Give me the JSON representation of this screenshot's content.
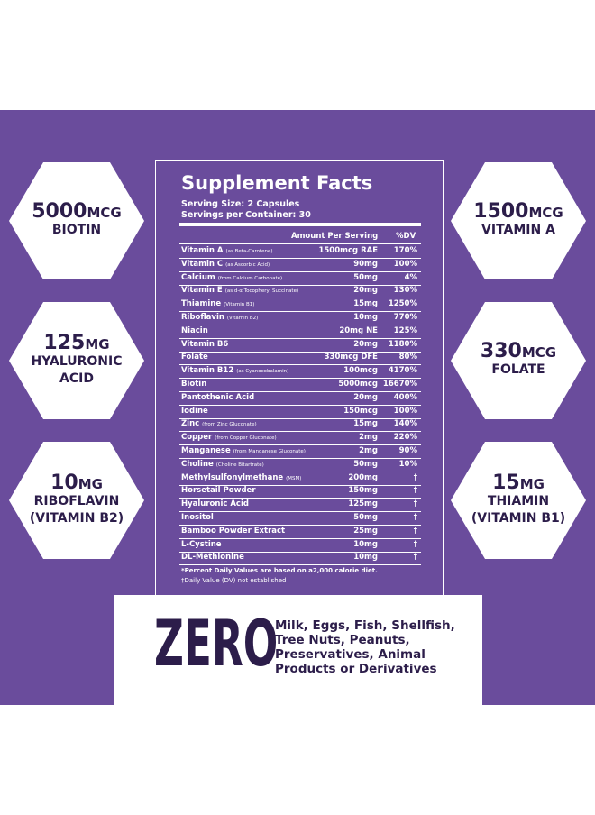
{
  "badges": [
    {
      "amount": "5000",
      "unit": "MCG",
      "label": [
        "BIOTIN"
      ]
    },
    {
      "amount": "125",
      "unit": "MG",
      "label": [
        "HYALURONIC",
        "ACID"
      ]
    },
    {
      "amount": "10",
      "unit": "MG",
      "label": [
        "RIBOFLAVIN",
        "(VITAMIN B2)"
      ]
    },
    {
      "amount": "1500",
      "unit": "MCG",
      "label": [
        "VITAMIN A"
      ]
    },
    {
      "amount": "330",
      "unit": "MCG",
      "label": [
        "FOLATE"
      ]
    },
    {
      "amount": "15",
      "unit": "MG",
      "label": [
        "THIAMIN",
        "(VITAMIN B1)"
      ]
    }
  ],
  "facts": {
    "title": "Supplement Facts",
    "serving_size": "Serving Size: 2 Capsules",
    "servings": "Servings per Container: 30",
    "header": [
      "Amount Per Serving",
      "%DV"
    ],
    "rows": [
      {
        "name": "Vitamin A",
        "note": "(as Beta-Carotene)",
        "amount": "1500mcg RAE",
        "dv": "170%"
      },
      {
        "name": "Vitamin C",
        "note": "(as Ascorbic Acid)",
        "amount": "90mg",
        "dv": "100%"
      },
      {
        "name": "Calcium",
        "note": "(from Calcium Carbonate)",
        "amount": "50mg",
        "dv": "4%"
      },
      {
        "name": "Vitamin E",
        "note": "(as d-α Tocopheryl Succinate)",
        "amount": "20mg",
        "dv": "130%"
      },
      {
        "name": "Thiamine",
        "note": "(Vitamin B1)",
        "amount": "15mg",
        "dv": "1250%"
      },
      {
        "name": "Riboflavin",
        "note": "(Vitamin B2)",
        "amount": "10mg",
        "dv": "770%"
      },
      {
        "name": "Niacin",
        "amount": "20mg NE",
        "dv": "125%"
      },
      {
        "name": "Vitamin B6",
        "amount": "20mg",
        "dv": "1180%"
      },
      {
        "name": "Folate",
        "amount": "330mcg DFE",
        "dv": "80%"
      },
      {
        "name": "Vitamin B12",
        "note": "(as Cyanocobalamin)",
        "amount": "100mcg",
        "dv": "4170%"
      },
      {
        "name": "Biotin",
        "amount": "5000mcg",
        "dv": "16670%"
      },
      {
        "name": "Pantothenic Acid",
        "amount": "20mg",
        "dv": "400%"
      },
      {
        "name": "Iodine",
        "amount": "150mcg",
        "dv": "100%"
      },
      {
        "name": "Zinc",
        "note": "(from Zinc Gluconate)",
        "amount": "15mg",
        "dv": "140%"
      },
      {
        "name": "Copper",
        "note": "(from Copper Gluconate)",
        "amount": "2mg",
        "dv": "220%"
      },
      {
        "name": "Manganese",
        "note": "(from Manganese Gluconate)",
        "amount": "2mg",
        "dv": "90%"
      },
      {
        "name": "Choline",
        "note": "(Choline Bitartrate)",
        "amount": "50mg",
        "dv": "10%"
      },
      {
        "name": "Methylsulfonylmethane",
        "note": "(MSM)",
        "amount": "200mg",
        "dv": "†"
      },
      {
        "name": "Horsetail Powder",
        "amount": "150mg",
        "dv": "†"
      },
      {
        "name": "Hyaluronic Acid",
        "amount": "125mg",
        "dv": "†"
      },
      {
        "name": "Inositol",
        "amount": "50mg",
        "dv": "†"
      },
      {
        "name": "Bamboo Powder Extract",
        "amount": "25mg",
        "dv": "†"
      },
      {
        "name": "L-Cystine",
        "amount": "10mg",
        "dv": "†"
      },
      {
        "name": "DL-Methionine",
        "amount": "10mg",
        "dv": "†"
      }
    ],
    "footnotes": [
      "*Percent Daily Values are based on a2,000 calorie diet.",
      "†Daily Value (DV) not established"
    ]
  },
  "zero": {
    "word": "ZERO",
    "lines": [
      "Milk, Eggs, Fish, Shellfish,",
      "Tree Nuts, Peanuts,",
      "Preservatives, Animal",
      "Products or Derivatives"
    ]
  }
}
